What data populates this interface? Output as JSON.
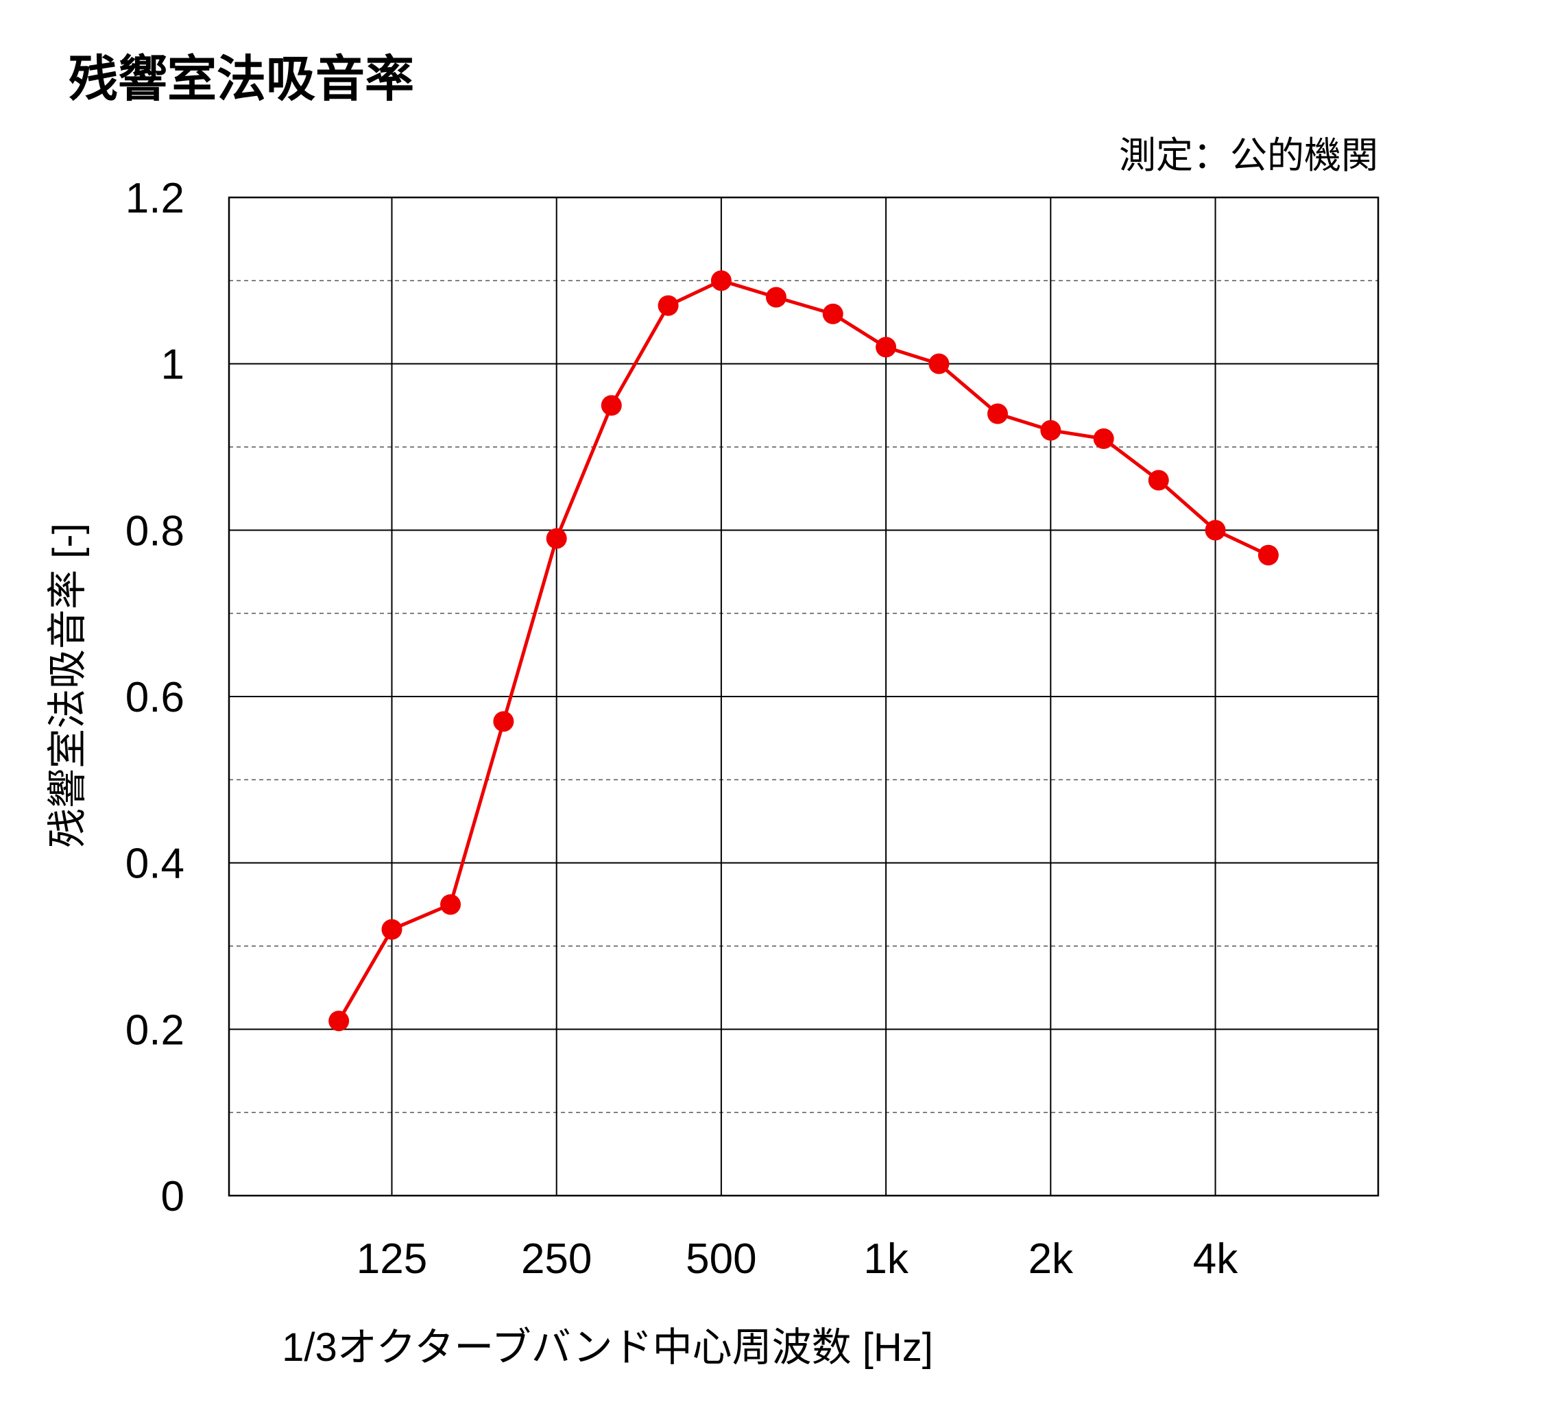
{
  "chart_data": {
    "type": "line",
    "title": "残響室法吸音率",
    "source_note": "測定：公的機関",
    "xlabel": "1/3オクターブバンド中心周波数 [Hz]",
    "ylabel": "残響室法吸音率 [-]",
    "ylim": [
      0,
      1.2
    ],
    "y_major_ticks": [
      0,
      0.2,
      0.4,
      0.6,
      0.8,
      1.0,
      1.2
    ],
    "y_tick_labels": [
      "0",
      "0.2",
      "0.4",
      "0.6",
      "0.8",
      "1",
      "1.2"
    ],
    "y_minor_step": 0.1,
    "x_scale": "log-octave",
    "x_tick_values": [
      125,
      250,
      500,
      1000,
      2000,
      4000
    ],
    "x_tick_labels": [
      "125",
      "250",
      "500",
      "1k",
      "2k",
      "4k"
    ],
    "grid": true,
    "series": [
      {
        "color": "#ee0000",
        "x": [
          100,
          125,
          160,
          200,
          250,
          315,
          400,
          500,
          630,
          800,
          1000,
          1250,
          1600,
          2000,
          2500,
          3150,
          4000,
          5000
        ],
        "values": [
          0.21,
          0.32,
          0.35,
          0.57,
          0.79,
          0.95,
          1.07,
          1.1,
          1.08,
          1.06,
          1.02,
          1.0,
          0.94,
          0.92,
          0.91,
          0.86,
          0.8,
          0.77
        ]
      }
    ]
  }
}
